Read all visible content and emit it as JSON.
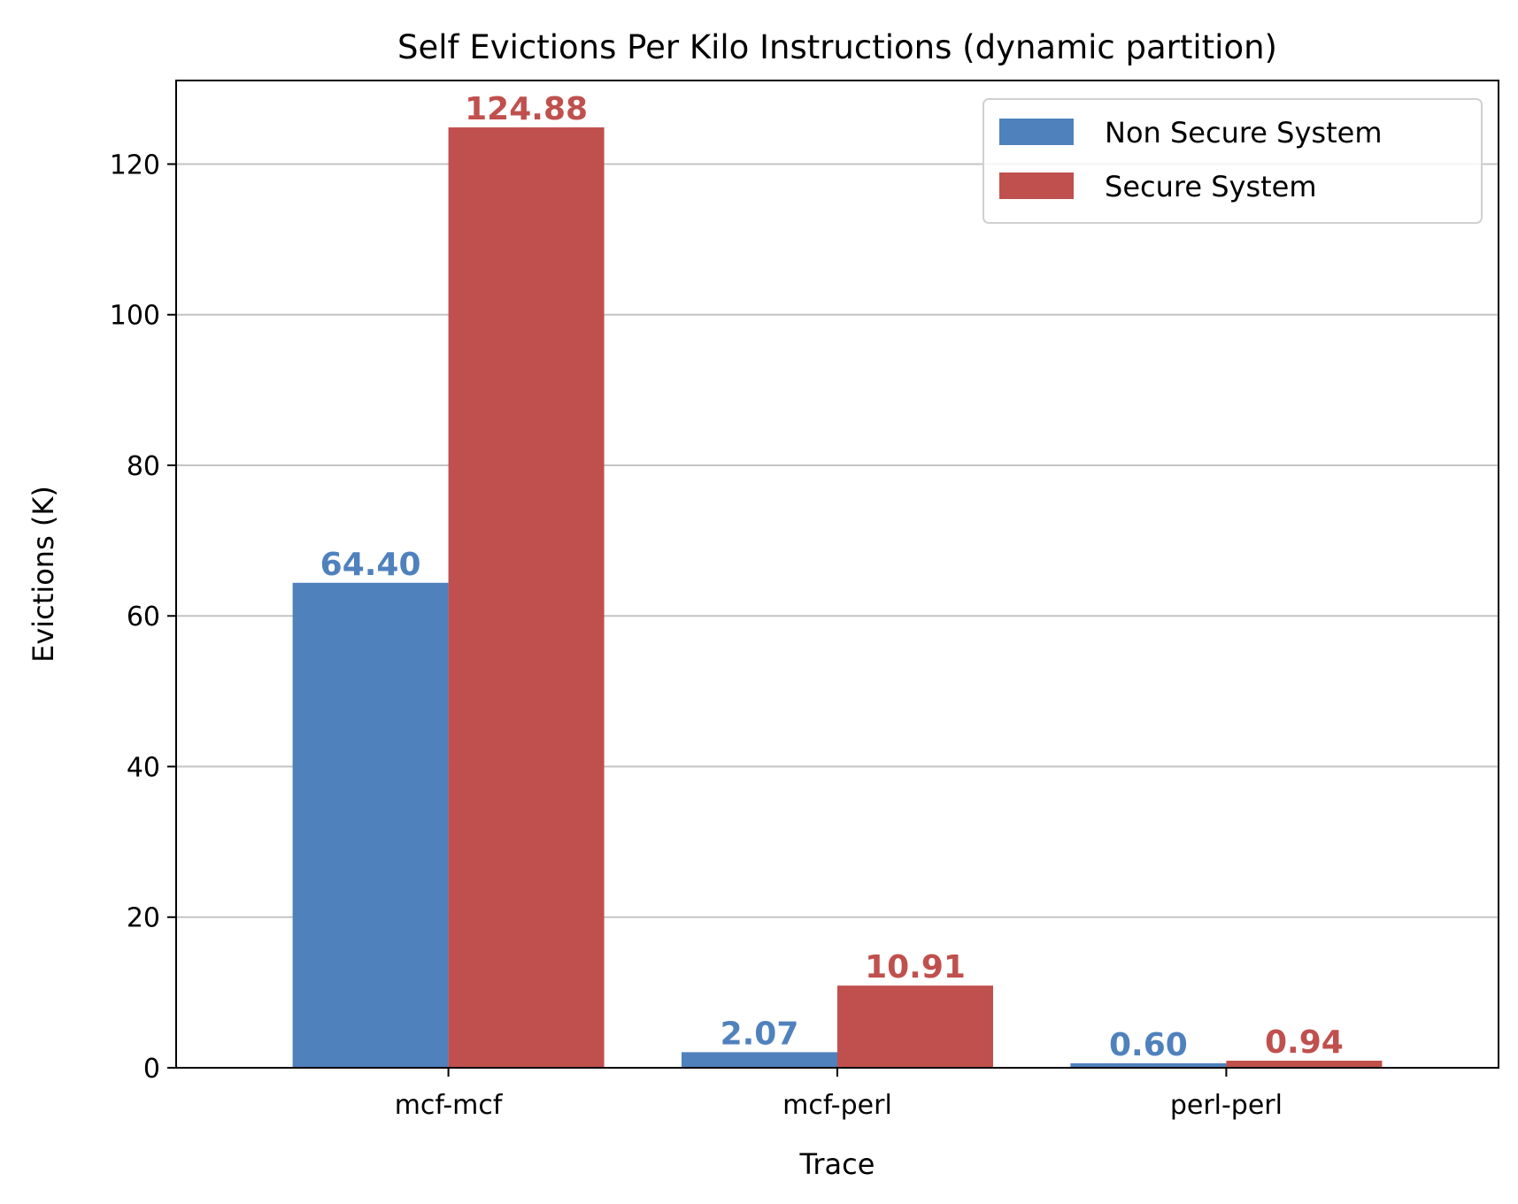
{
  "chart_data": {
    "type": "bar",
    "title": "Self Evictions Per Kilo Instructions (dynamic partition)",
    "xlabel": "Trace",
    "ylabel": "Evictions (K)",
    "categories": [
      "mcf-mcf",
      "mcf-perl",
      "perl-perl"
    ],
    "series": [
      {
        "name": "Non Secure System",
        "color": "#4f81bd",
        "values": [
          64.4,
          2.07,
          0.6
        ],
        "labels": [
          "64.40",
          "2.07",
          "0.60"
        ]
      },
      {
        "name": "Secure System",
        "color": "#c0504d",
        "values": [
          124.88,
          10.91,
          0.94
        ],
        "labels": [
          "124.88",
          "10.91",
          "0.94"
        ]
      }
    ],
    "ylim": [
      0,
      131.1
    ],
    "yticks": [
      0,
      20,
      40,
      60,
      80,
      100,
      120
    ],
    "ytick_labels": [
      "0",
      "20",
      "40",
      "60",
      "80",
      "100",
      "120"
    ],
    "grid": "horizontal",
    "legend_position": "top-right"
  }
}
